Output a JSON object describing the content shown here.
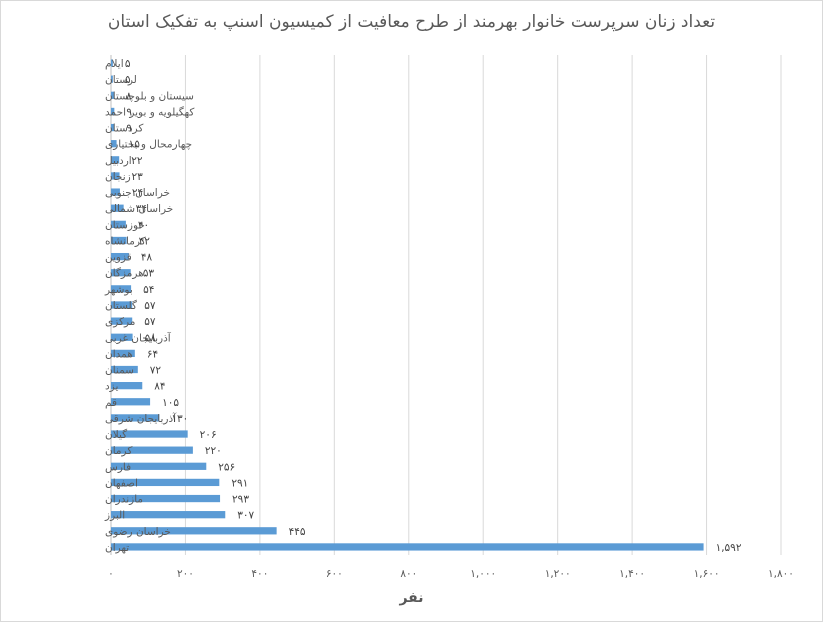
{
  "chart_data": {
    "type": "bar",
    "orientation": "horizontal",
    "title": "تعداد زنان سرپرست خانوار بهرمند از طرح معافیت از کمیسیون اسنپ به تفکیک استان",
    "xlabel": "نفر",
    "ylabel": "",
    "xlim": [
      0,
      1800
    ],
    "x_ticks": [
      0,
      200,
      400,
      600,
      800,
      1000,
      1200,
      1400,
      1600,
      1800
    ],
    "x_tick_labels": [
      "۰",
      "۲۰۰",
      "۴۰۰",
      "۶۰۰",
      "۸۰۰",
      "۱,۰۰۰",
      "۱,۲۰۰",
      "۱,۴۰۰",
      "۱,۶۰۰",
      "۱,۸۰۰"
    ],
    "grid": "vertical",
    "bar_color": "#5b9bd5",
    "categories": [
      "ایلام",
      "لرستان",
      "سیستان و بلوچستان",
      "کهگیلویه و بویر احمد",
      "کردستان",
      "چهارمحال و بختیاری",
      "اردبیل",
      "زنجان",
      "خراسان جنوبی",
      "خراسان شمالی",
      "خوزستان",
      "کرمانشاه",
      "قزوین",
      "هرمزگان",
      "بوشهر",
      "گلستان",
      "مرکزی",
      "آذربایجان غربی",
      "همدان",
      "سمنان",
      "یزد",
      "قم",
      "آذربایجان شرقی",
      "گیلان",
      "کرمان",
      "فارس",
      "اصفهان",
      "مازندران",
      "البرز",
      "خراسان رضوی",
      "تهران"
    ],
    "values": [
      5,
      5,
      8,
      9,
      9,
      15,
      22,
      23,
      24,
      34,
      40,
      42,
      48,
      53,
      54,
      57,
      57,
      58,
      64,
      72,
      84,
      105,
      130,
      206,
      220,
      256,
      291,
      293,
      307,
      445,
      1592
    ],
    "value_labels": [
      "۵",
      "۵",
      "۸",
      "۹",
      "۹",
      "۱۵",
      "۲۲",
      "۲۳",
      "۲۴",
      "۳۴",
      "۴۰",
      "۴۲",
      "۴۸",
      "۵۳",
      "۵۴",
      "۵۷",
      "۵۷",
      "۵۸",
      "۶۴",
      "۷۲",
      "۸۴",
      "۱۰۵",
      "۱۳۰",
      "۲۰۶",
      "۲۲۰",
      "۲۵۶",
      "۲۹۱",
      "۲۹۳",
      "۳۰۷",
      "۴۴۵",
      "۱,۵۹۲"
    ]
  }
}
